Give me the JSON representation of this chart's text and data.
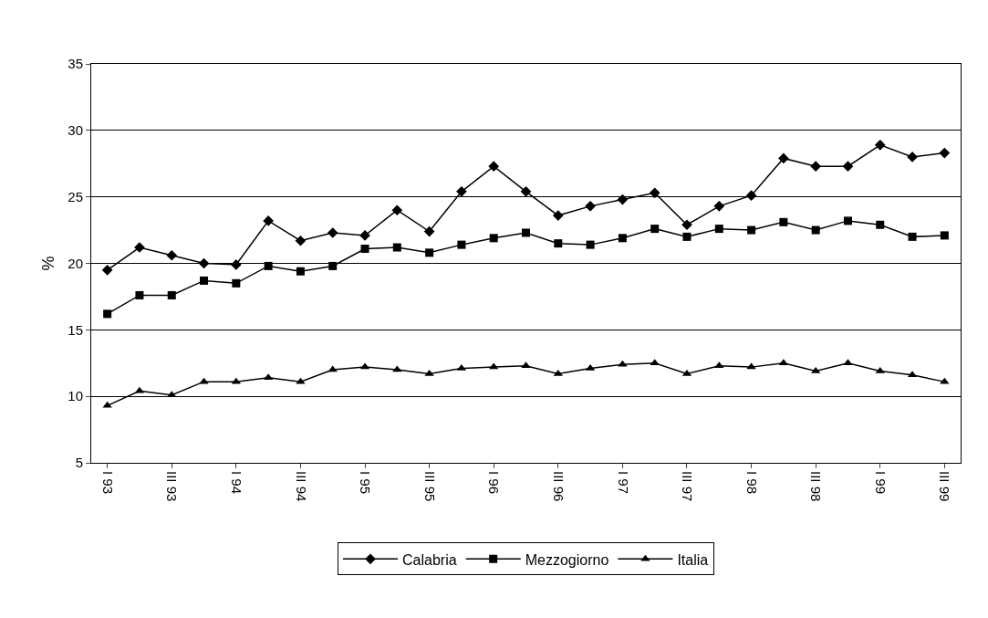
{
  "chart_data": {
    "type": "line",
    "ylabel": "%",
    "categories": [
      "I 93",
      null,
      "III 93",
      null,
      "I 94",
      null,
      "III 94",
      null,
      "I 95",
      null,
      "III 95",
      null,
      "I 96",
      null,
      "III 96",
      null,
      "I 97",
      null,
      "III 97",
      null,
      "I 98",
      null,
      "III 98",
      null,
      "I 99",
      null,
      "III 99"
    ],
    "series": [
      {
        "name": "Calabria",
        "color": "#000000",
        "marker": "diamond",
        "values": [
          19.5,
          21.2,
          20.6,
          20.0,
          19.9,
          23.2,
          21.7,
          22.3,
          22.1,
          24.0,
          22.4,
          25.4,
          27.3,
          25.4,
          23.6,
          24.3,
          24.8,
          25.3,
          22.9,
          24.3,
          25.1,
          27.9,
          27.3,
          27.3,
          28.9,
          28.0,
          28.3
        ]
      },
      {
        "name": "Mezzogiorno",
        "color": "#000000",
        "marker": "square",
        "values": [
          16.2,
          17.6,
          17.6,
          18.7,
          18.5,
          19.8,
          19.4,
          19.8,
          21.1,
          21.2,
          20.8,
          21.4,
          21.9,
          22.3,
          21.5,
          21.4,
          21.9,
          22.6,
          22.0,
          22.6,
          22.5,
          23.1,
          22.5,
          23.2,
          22.9,
          22.0,
          22.1
        ]
      },
      {
        "name": "Italia",
        "color": "#000000",
        "marker": "triangle",
        "values": [
          9.3,
          10.4,
          10.1,
          11.1,
          11.1,
          11.4,
          11.1,
          12.0,
          12.2,
          12.0,
          11.7,
          12.1,
          12.2,
          12.3,
          11.7,
          12.1,
          12.4,
          12.5,
          11.7,
          12.3,
          12.2,
          12.5,
          11.9,
          12.5,
          11.9,
          11.6,
          11.1
        ]
      }
    ],
    "ylim": [
      5,
      35
    ],
    "yticks": [
      5,
      10,
      15,
      20,
      25,
      30,
      35
    ],
    "grid": "y",
    "legend": "bottom",
    "line_style": "solid"
  }
}
